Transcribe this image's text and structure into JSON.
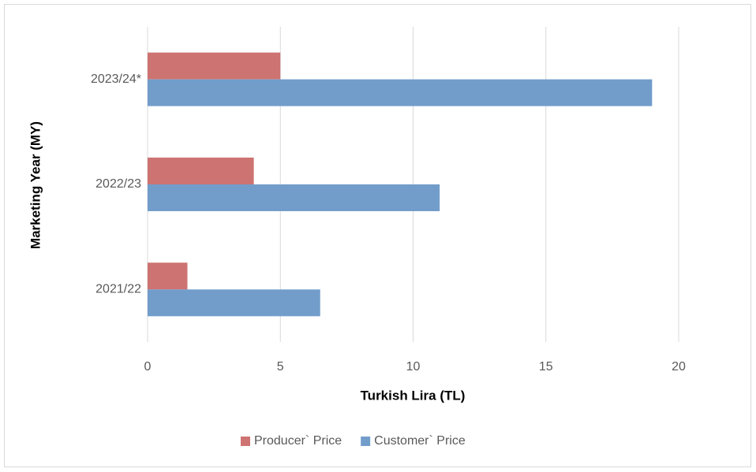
{
  "chart_data": {
    "type": "bar",
    "orientation": "horizontal",
    "x_label": "Turkish Lira (TL)",
    "y_label": "Marketing Year (MY)",
    "categories": [
      "2021/22",
      "2022/23",
      "2023/24*"
    ],
    "series": [
      {
        "name": "Producer` Price",
        "color": "#cd7371",
        "values": [
          1.5,
          4,
          5
        ]
      },
      {
        "name": "Customer` Price",
        "color": "#729dcb",
        "values": [
          6.5,
          11,
          19
        ]
      }
    ],
    "xlim": [
      0,
      20
    ],
    "xticks": [
      0,
      5,
      10,
      15,
      20
    ],
    "grid": true,
    "legend": "bottom"
  }
}
